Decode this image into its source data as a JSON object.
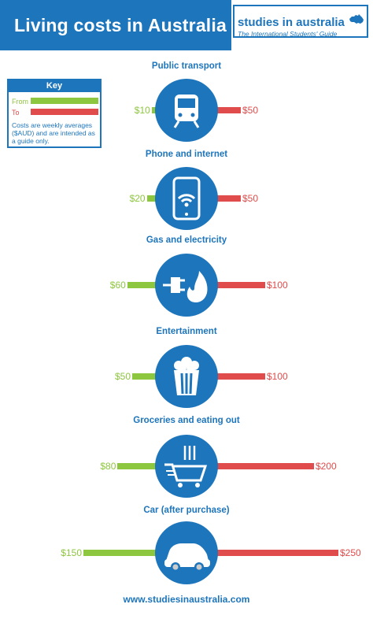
{
  "header": {
    "title": "Living costs in Australia",
    "brand_name": "studies in australia",
    "brand_tagline": "The International Students' Guide"
  },
  "key": {
    "title": "Key",
    "from_label": "From",
    "to_label": "To",
    "note": "Costs are weekly averages ($AUD) and are intended as a guide only."
  },
  "colors": {
    "primary": "#1d75bc",
    "from": "#8dc63f",
    "to": "#e04b4b"
  },
  "chart_data": {
    "type": "bar",
    "title": "Living costs in Australia",
    "unit": "$AUD per week",
    "categories": [
      "Public transport",
      "Phone and internet",
      "Gas and electricity",
      "Entertainment",
      "Groceries and eating out",
      "Car (after purchase)"
    ],
    "series": [
      {
        "name": "From",
        "values": [
          10,
          20,
          60,
          50,
          80,
          150
        ]
      },
      {
        "name": "To",
        "values": [
          50,
          50,
          100,
          100,
          200,
          250
        ]
      }
    ],
    "from_labels": [
      "$10",
      "$20",
      "$60",
      "$50",
      "$80",
      "$150"
    ],
    "to_labels": [
      "$50",
      "$50",
      "$100",
      "$100",
      "$200",
      "$250"
    ],
    "icons": [
      "train-icon",
      "smartphone-wifi-icon",
      "plug-flame-icon",
      "popcorn-icon",
      "shopping-cart-cutlery-icon",
      "car-icon"
    ]
  },
  "footer": {
    "url": "www.studiesinaustralia.com"
  }
}
